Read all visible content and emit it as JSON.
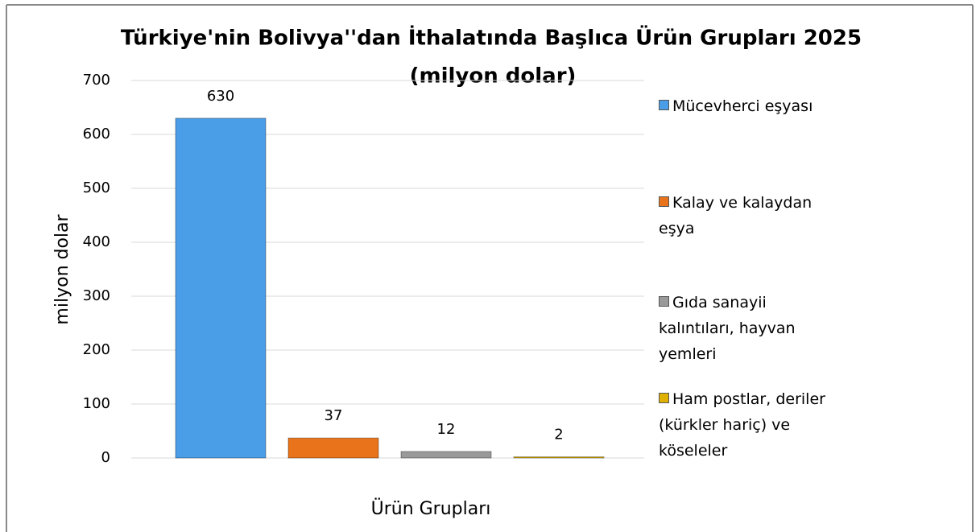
{
  "chart_data": {
    "type": "bar",
    "title": "Türkiye'nin Bolivya''dan İthalatında Başlıca Ürün Grupları 2025",
    "subtitle": "(milyon dolar)",
    "y_label": "milyon dolar",
    "x_label": "Ürün Grupları",
    "series": [
      {
        "name": "Mücevherci eşyası",
        "color": "#4a9ee8",
        "values": [
          630
        ]
      },
      {
        "name": "Kalay ve kalaydan eşya",
        "color": "#e8731a",
        "values": [
          37
        ]
      },
      {
        "name": "Gıda sanayii kalıntıları, hayvan yemleri",
        "color": "#9a9a9a",
        "values": [
          12
        ]
      },
      {
        "name": "Ham postlar, deriler (kürkler hariç) ve köseleler",
        "color": "#e0b000",
        "values": [
          2
        ]
      }
    ],
    "ylim": [
      0,
      700
    ],
    "yticks": [
      0,
      100,
      200,
      300,
      400,
      500,
      600,
      700
    ],
    "grid": true,
    "legend": "right"
  }
}
